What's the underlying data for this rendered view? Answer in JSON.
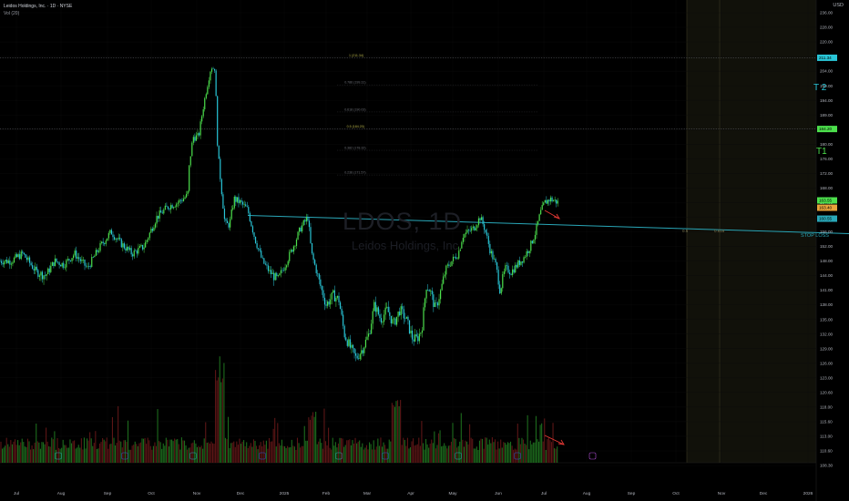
{
  "header": {
    "title": "Leidos Holdings, Inc. · 1D · NYSE",
    "indicator": "Vol (20)",
    "currency": "USD",
    "watermark_symbol": "LDOS, 1D",
    "watermark_name": "Leidos Holdings, Inc."
  },
  "labels": {
    "t1": "T1",
    "t2": "T 2",
    "stop_loss": "STOP LOSS",
    "projection_a": "0.5",
    "projection_b": "0.618"
  },
  "colors": {
    "up": "#4ce04c",
    "down": "#29c5d6",
    "trendline": "#29a7b8",
    "arrow": "#e53935",
    "projection_zone": "#1a1a0a"
  },
  "chart_data": {
    "type": "candlestick",
    "x_tick_labels": [
      "Jul",
      "Aug",
      "Sep",
      "Oct",
      "Nov",
      "Dec",
      "2025",
      "Feb",
      "Mar",
      "Apr",
      "May",
      "Jun",
      "Jul",
      "Aug",
      "Sep",
      "Oct",
      "Nov",
      "Dec",
      "2026"
    ],
    "y_tick_labels": [
      236.0,
      228.0,
      220.0,
      212.0,
      204.0,
      199.0,
      194.0,
      189.0,
      184.0,
      180.0,
      176.0,
      172.0,
      168.0,
      164.0,
      160.0,
      156.0,
      152.0,
      148.0,
      144.0,
      141.0,
      138.0,
      135.0,
      132.0,
      129.0,
      126.0,
      123.0,
      120.6,
      118.0,
      115.6,
      113.0,
      110.6,
      108.3
    ],
    "ylim": [
      108.3,
      236
    ],
    "price_path": [
      [
        0,
        148
      ],
      [
        12,
        148
      ],
      [
        25,
        150
      ],
      [
        40,
        145
      ],
      [
        50,
        144
      ],
      [
        60,
        148
      ],
      [
        70,
        147
      ],
      [
        82,
        150
      ],
      [
        96,
        146
      ],
      [
        110,
        152
      ],
      [
        122,
        156
      ],
      [
        132,
        153
      ],
      [
        145,
        150
      ],
      [
        158,
        152
      ],
      [
        172,
        160
      ],
      [
        185,
        163
      ],
      [
        195,
        164
      ],
      [
        206,
        166
      ],
      [
        208,
        175
      ],
      [
        212,
        182
      ],
      [
        218,
        182
      ],
      [
        225,
        195
      ],
      [
        232,
        206
      ],
      [
        236,
        205
      ],
      [
        239,
        178
      ],
      [
        243,
        168
      ],
      [
        247,
        158
      ],
      [
        252,
        158
      ],
      [
        257,
        165
      ],
      [
        264,
        164
      ],
      [
        272,
        162
      ],
      [
        280,
        154
      ],
      [
        288,
        148
      ],
      [
        296,
        145
      ],
      [
        305,
        143
      ],
      [
        313,
        147
      ],
      [
        322,
        152
      ],
      [
        330,
        157
      ],
      [
        338,
        160
      ],
      [
        342,
        150
      ],
      [
        350,
        143
      ],
      [
        358,
        138
      ],
      [
        366,
        140
      ],
      [
        372,
        139
      ],
      [
        378,
        132
      ],
      [
        385,
        129
      ],
      [
        391,
        127
      ],
      [
        398,
        129
      ],
      [
        405,
        132
      ],
      [
        411,
        138
      ],
      [
        418,
        135
      ],
      [
        425,
        137
      ],
      [
        432,
        134
      ],
      [
        439,
        137
      ],
      [
        446,
        135
      ],
      [
        453,
        131
      ],
      [
        458,
        131
      ],
      [
        463,
        133
      ],
      [
        468,
        142
      ],
      [
        472,
        141
      ],
      [
        478,
        137
      ],
      [
        484,
        141
      ],
      [
        490,
        146
      ],
      [
        496,
        148
      ],
      [
        503,
        150
      ],
      [
        508,
        155
      ],
      [
        514,
        156
      ],
      [
        520,
        157
      ],
      [
        527,
        160
      ],
      [
        532,
        157
      ],
      [
        538,
        151
      ],
      [
        544,
        147
      ],
      [
        549,
        141
      ],
      [
        555,
        146
      ],
      [
        561,
        145
      ],
      [
        568,
        147
      ],
      [
        575,
        149
      ],
      [
        582,
        152
      ],
      [
        588,
        156
      ],
      [
        593,
        161
      ],
      [
        598,
        164
      ],
      [
        604,
        165
      ],
      [
        613,
        164
      ]
    ],
    "fibonacci_levels": [
      {
        "ratio": "1",
        "label": "1 (211.34)",
        "price": 211.34
      },
      {
        "ratio": "0.786",
        "label": "0.786 (199.31)",
        "price": 199.31
      },
      {
        "ratio": "0.618",
        "label": "0.618 (190.03)",
        "price": 190.03
      },
      {
        "ratio": "0.5",
        "label": "0.5 (184.20)",
        "price": 184.2
      },
      {
        "ratio": "0.382",
        "label": "0.382 (178.32)",
        "price": 178.32
      },
      {
        "ratio": "0.236",
        "label": "0.236 (171.57)",
        "price": 171.57
      }
    ],
    "targets": {
      "t2": 211.34,
      "t1": 184.2
    },
    "trendline": {
      "start_price": 160.5,
      "end_price": 155.5
    },
    "current_price_tags": [
      "163.55",
      "163.40",
      "160.55"
    ],
    "price_tags": {
      "t2": "211.34",
      "t1": "184.20"
    }
  }
}
